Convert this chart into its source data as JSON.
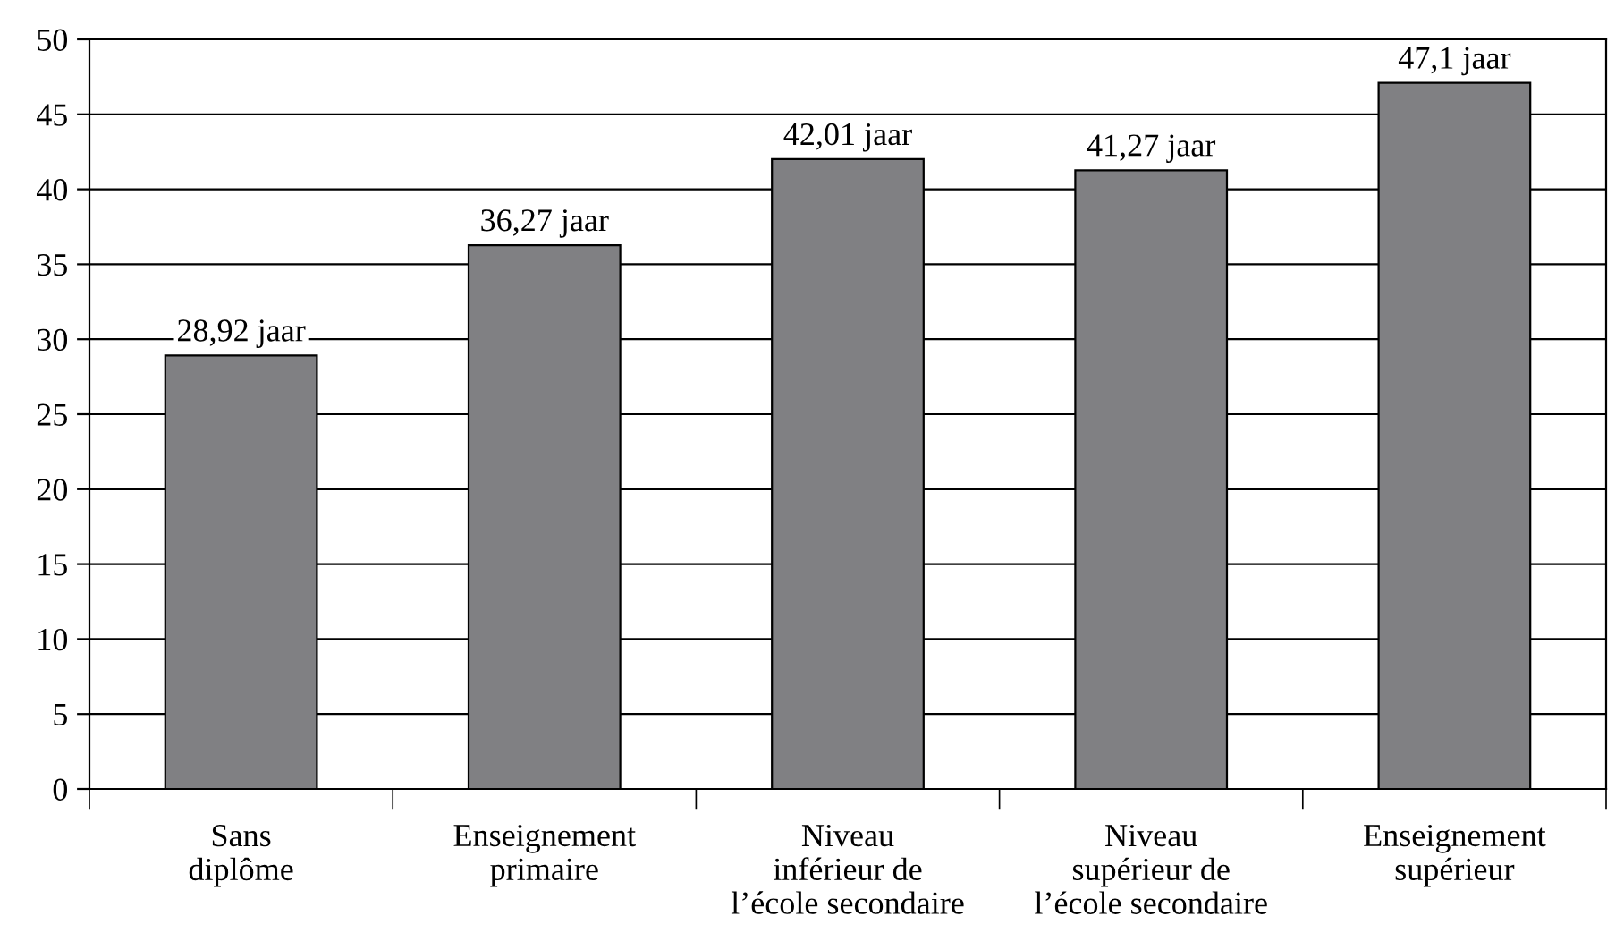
{
  "chart_data": {
    "type": "bar",
    "categories": [
      "Sans\ndiplôme",
      "Enseignement\nprimaire",
      "Niveau\ninférieur de\nl’école secondaire",
      "Niveau\nsupérieur de\nl’école secondaire",
      "Enseignement\nsupérieur"
    ],
    "values": [
      28.92,
      36.27,
      42.01,
      41.27,
      47.1
    ],
    "value_labels": [
      "28,92 jaar",
      "36,27 jaar",
      "42,01 jaar",
      "41,27 jaar",
      "47,1 jaar"
    ],
    "color": "#808083",
    "ylim": [
      0,
      50
    ],
    "yticks": [
      0,
      5,
      10,
      15,
      20,
      25,
      30,
      35,
      40,
      45,
      50
    ],
    "grid": "y"
  }
}
